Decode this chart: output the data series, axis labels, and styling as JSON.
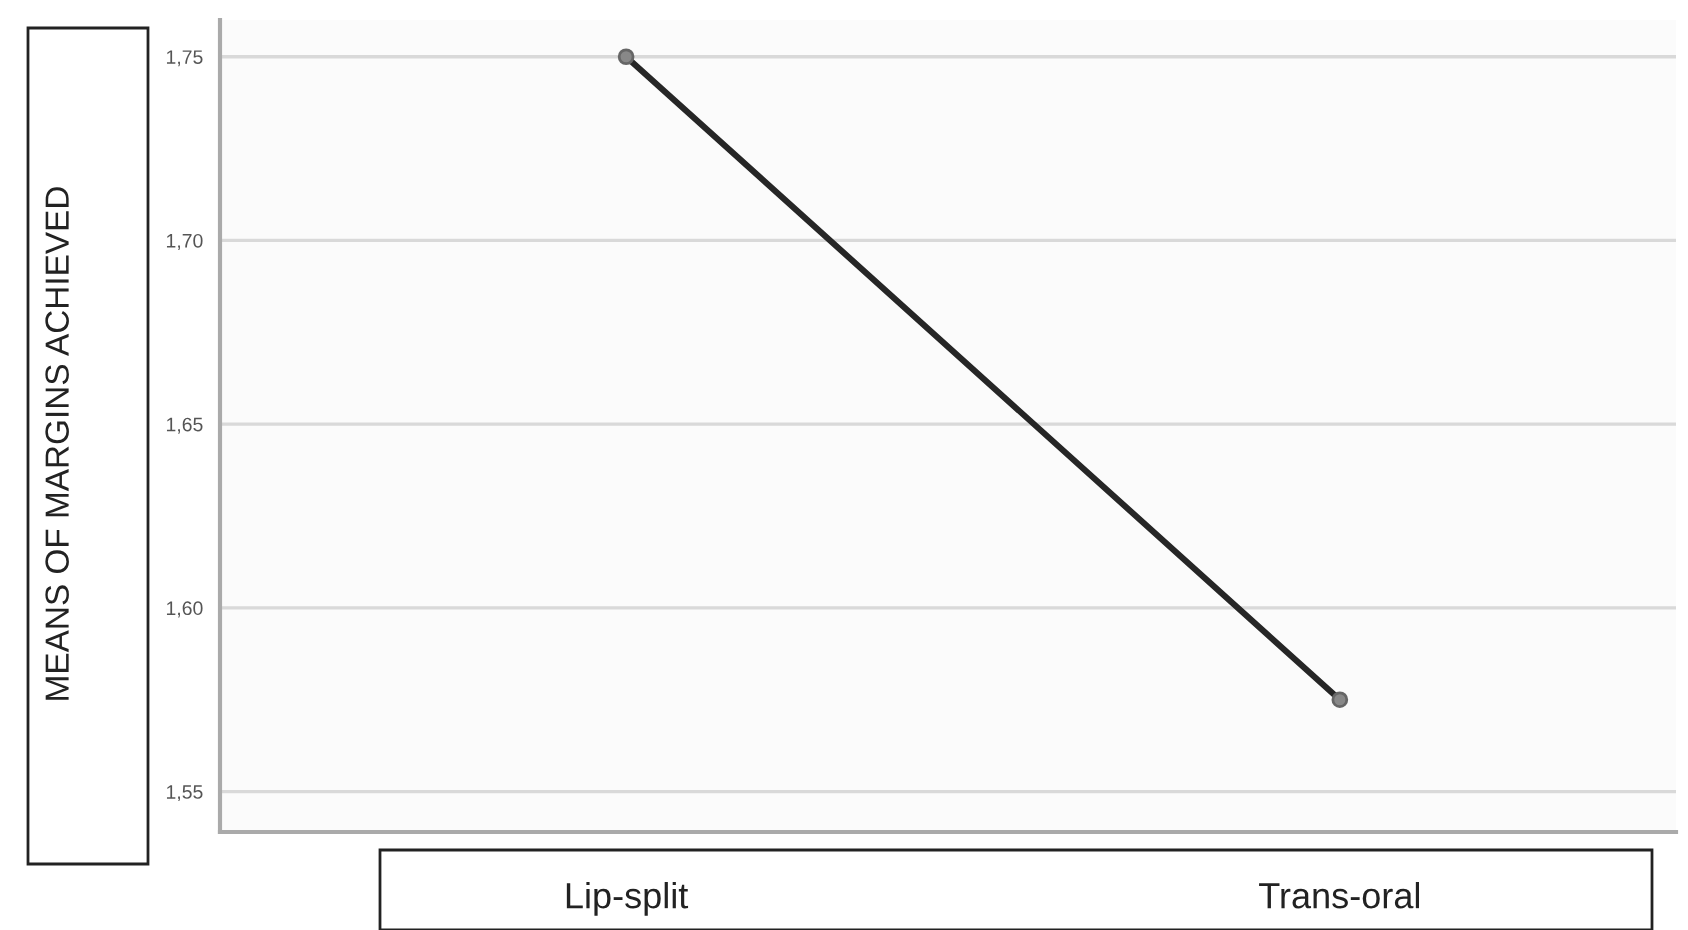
{
  "chart_data": {
    "type": "line",
    "ylabel": "MEANS OF MARGINS ACHIEVED",
    "categories": [
      "Lip-split",
      "Trans-oral"
    ],
    "series": [
      {
        "color": "#262626",
        "values": [
          1.75,
          1.575
        ]
      }
    ],
    "ylim": [
      1.539,
      1.76
    ],
    "yticks": [
      {
        "value": 1.55,
        "label": "1,55"
      },
      {
        "value": 1.6,
        "label": "1,60"
      },
      {
        "value": 1.65,
        "label": "1,65"
      },
      {
        "value": 1.7,
        "label": "1,70"
      },
      {
        "value": 1.75,
        "label": "1,75"
      }
    ],
    "grid": "y",
    "marker": "circle",
    "line_style": "solid",
    "legend": false
  }
}
